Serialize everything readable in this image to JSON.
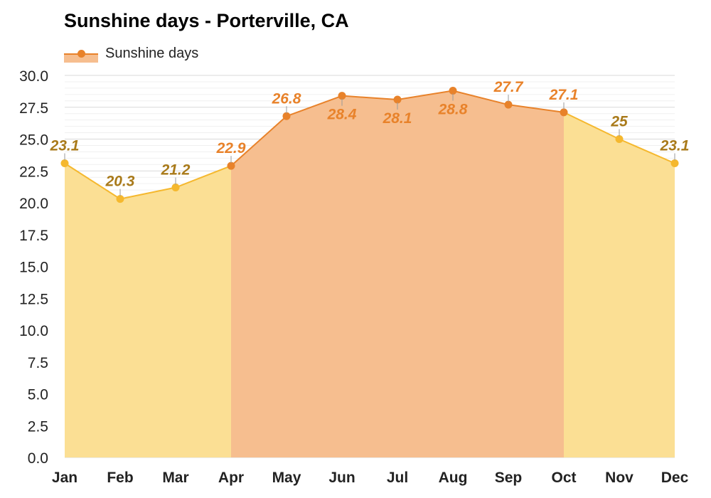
{
  "chart_data": {
    "type": "area",
    "title": "Sunshine days - Porterville, CA",
    "legend": {
      "label": "Sunshine days",
      "placement": "top-left"
    },
    "categories": [
      "Jan",
      "Feb",
      "Mar",
      "Apr",
      "May",
      "Jun",
      "Jul",
      "Aug",
      "Sep",
      "Oct",
      "Nov",
      "Dec"
    ],
    "values": [
      23.1,
      20.3,
      21.2,
      22.9,
      26.8,
      28.4,
      28.1,
      28.8,
      27.7,
      27.1,
      25,
      23.1
    ],
    "value_labels": [
      "23.1",
      "20.3",
      "21.2",
      "22.9",
      "26.8",
      "28.4",
      "28.1",
      "28.8",
      "27.7",
      "27.1",
      "25",
      "23.1"
    ],
    "ylim": [
      0,
      30
    ],
    "y_ticks": [
      "0.0",
      "2.5",
      "5.0",
      "7.5",
      "10.0",
      "12.5",
      "15.0",
      "17.5",
      "20.0",
      "22.5",
      "25.0",
      "27.5",
      "30.0"
    ],
    "grid": true,
    "highlight_range": {
      "from": "Apr",
      "to": "Oct"
    },
    "colors": {
      "line_off": "#f5b82e",
      "fill_off": "#fbdf94",
      "line_high": "#e8822a",
      "fill_high": "#f6be8f",
      "label_off": "#a97a1a",
      "label_high": "#e8822a"
    }
  }
}
